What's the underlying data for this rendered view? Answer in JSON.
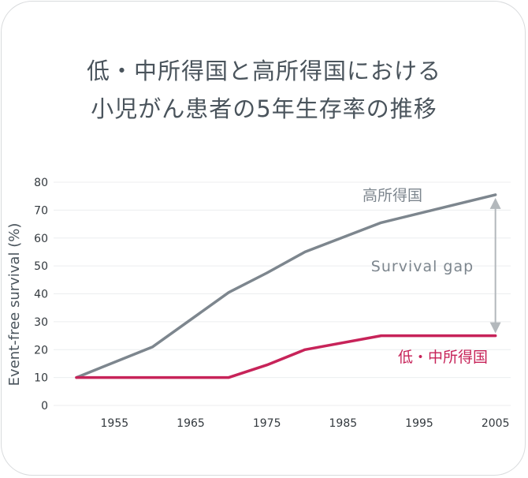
{
  "chart_data": {
    "type": "line",
    "title_lines": [
      "低・中所得国と高所得国における",
      "小児がん患者の5年生存率の推移"
    ],
    "ylabel": "Event-free survival (%)",
    "xlabel": "",
    "ylim": [
      0,
      80
    ],
    "yticks": [
      0,
      10,
      20,
      30,
      40,
      50,
      60,
      70,
      80
    ],
    "xlim": [
      1947,
      2007
    ],
    "xticks": [
      1955,
      1965,
      1975,
      1985,
      1995,
      2005
    ],
    "grid": true,
    "series": [
      {
        "name": "高所得国",
        "color": "#7d868e",
        "x": [
          1950,
          1960,
          1970,
          1975,
          1980,
          1990,
          2005
        ],
        "y": [
          10,
          21,
          40.5,
          47.5,
          55,
          65.5,
          75.5
        ]
      },
      {
        "name": "低・中所得国",
        "color": "#c72359",
        "x": [
          1950,
          1970,
          1975,
          1980,
          1990,
          2005
        ],
        "y": [
          10,
          10,
          14.5,
          20,
          25,
          25
        ]
      }
    ],
    "annotations": [
      {
        "text": "Survival gap",
        "x": 2005,
        "y_from": 25,
        "y_to": 75.5
      }
    ]
  }
}
